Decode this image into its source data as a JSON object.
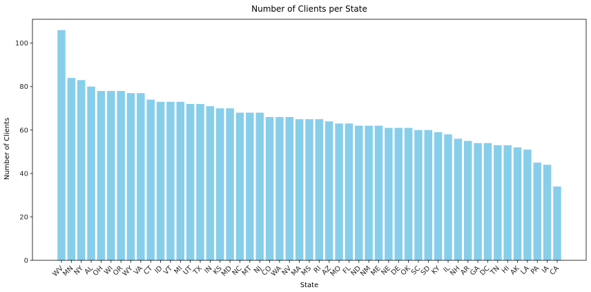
{
  "chart_data": {
    "type": "bar",
    "title": "Number of Clients per State",
    "xlabel": "State",
    "ylabel": "Number of Clients",
    "ylim": [
      0,
      111
    ],
    "yticks": [
      0,
      20,
      40,
      60,
      80,
      100
    ],
    "grid": false,
    "bar_color": "#87ceeb",
    "categories": [
      "WV",
      "MN",
      "NY",
      "AL",
      "OH",
      "WI",
      "OR",
      "WY",
      "VA",
      "CT",
      "ID",
      "VT",
      "MI",
      "UT",
      "TX",
      "IN",
      "KS",
      "MD",
      "NC",
      "MT",
      "NJ",
      "CO",
      "WA",
      "NV",
      "MA",
      "MS",
      "RI",
      "AZ",
      "MO",
      "FL",
      "ND",
      "NM",
      "ME",
      "NE",
      "DE",
      "OK",
      "SC",
      "SD",
      "KY",
      "IL",
      "NH",
      "AR",
      "GA",
      "DC",
      "TN",
      "HI",
      "AK",
      "LA",
      "PA",
      "IA",
      "CA"
    ],
    "values": [
      106,
      84,
      83,
      80,
      78,
      78,
      78,
      77,
      77,
      74,
      73,
      73,
      73,
      72,
      72,
      71,
      70,
      70,
      68,
      68,
      68,
      66,
      66,
      66,
      65,
      65,
      65,
      64,
      63,
      63,
      62,
      62,
      62,
      61,
      61,
      61,
      60,
      60,
      59,
      58,
      56,
      55,
      54,
      54,
      53,
      53,
      52,
      51,
      45,
      44,
      34
    ]
  }
}
